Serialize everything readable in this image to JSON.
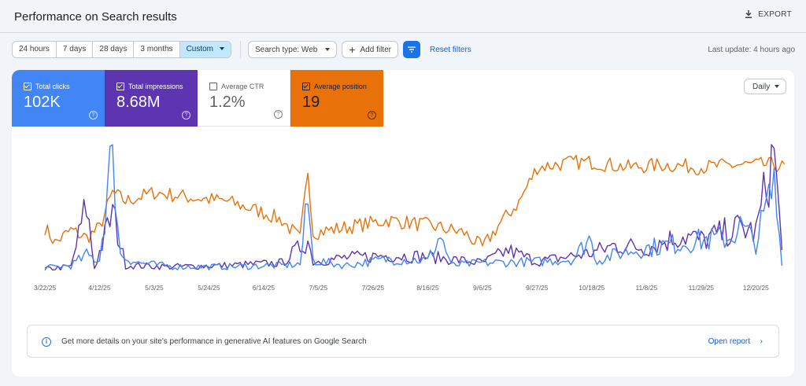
{
  "header": {
    "title": "Performance on Search results",
    "export_label": "EXPORT"
  },
  "filters": {
    "date_ranges": [
      "24 hours",
      "7 days",
      "28 days",
      "3 months",
      "Custom"
    ],
    "selected_date_range": "Custom",
    "search_type": "Search type: Web",
    "add_filter": "Add filter",
    "reset_filters": "Reset filters",
    "last_update": "Last update: 4 hours ago"
  },
  "metrics": [
    {
      "label": "Total clicks",
      "value": "102K",
      "checked": true,
      "color": "#4285f4"
    },
    {
      "label": "Total impressions",
      "value": "8.68M",
      "checked": true,
      "color": "#5e35b1"
    },
    {
      "label": "Average CTR",
      "value": "1.2%",
      "checked": false,
      "color": "#00897b"
    },
    {
      "label": "Average position",
      "value": "19",
      "checked": true,
      "color": "#e8710a"
    }
  ],
  "granularity": "Daily",
  "chart_data": {
    "type": "line",
    "x_tick_labels": [
      "3/22/25",
      "4/12/25",
      "5/3/25",
      "5/24/25",
      "6/14/25",
      "7/5/25",
      "7/26/25",
      "8/16/25",
      "9/6/25",
      "9/27/25",
      "10/18/25",
      "11/8/25",
      "11/29/25",
      "12/20/25"
    ],
    "x_range": [
      "3/22/25",
      "1/1/26"
    ],
    "grid": false,
    "axes_values_shown": false,
    "series": [
      {
        "name": "Total clicks",
        "color": "#4285f4",
        "scale": "relative 0-1",
        "points": [
          [
            "3/22/25",
            0.02
          ],
          [
            "4/1/25",
            0.04
          ],
          [
            "4/7/25",
            0.12
          ],
          [
            "4/12/25",
            0.08
          ],
          [
            "4/17/25",
            1.0
          ],
          [
            "4/20/25",
            0.12
          ],
          [
            "4/27/25",
            0.06
          ],
          [
            "5/10/25",
            0.03
          ],
          [
            "5/31/25",
            0.03
          ],
          [
            "6/21/25",
            0.04
          ],
          [
            "6/28/25",
            0.05
          ],
          [
            "7/1/25",
            0.55
          ],
          [
            "7/3/25",
            0.08
          ],
          [
            "7/15/25",
            0.04
          ],
          [
            "8/1/25",
            0.09
          ],
          [
            "8/16/25",
            0.08
          ],
          [
            "8/21/25",
            0.28
          ],
          [
            "8/25/25",
            0.04
          ],
          [
            "9/6/25",
            0.06
          ],
          [
            "9/27/25",
            0.07
          ],
          [
            "10/11/25",
            0.09
          ],
          [
            "10/17/25",
            0.26
          ],
          [
            "10/20/25",
            0.08
          ],
          [
            "10/31/25",
            0.15
          ],
          [
            "11/15/25",
            0.2
          ],
          [
            "11/29/25",
            0.24
          ],
          [
            "12/10/25",
            0.26
          ],
          [
            "12/14/25",
            0.35
          ],
          [
            "12/20/25",
            0.22
          ],
          [
            "12/27/25",
            0.68
          ],
          [
            "12/30/25",
            0.08
          ]
        ]
      },
      {
        "name": "Total impressions",
        "color": "#5e35b1",
        "scale": "relative 0-1",
        "points": [
          [
            "3/22/25",
            0.01
          ],
          [
            "4/1/25",
            0.03
          ],
          [
            "4/7/25",
            0.52
          ],
          [
            "4/10/25",
            0.02
          ],
          [
            "4/17/25",
            0.46
          ],
          [
            "4/22/25",
            0.04
          ],
          [
            "5/10/25",
            0.03
          ],
          [
            "5/31/25",
            0.04
          ],
          [
            "6/21/25",
            0.06
          ],
          [
            "7/1/25",
            0.24
          ],
          [
            "7/3/25",
            0.07
          ],
          [
            "7/15/25",
            0.1
          ],
          [
            "8/1/25",
            0.12
          ],
          [
            "8/16/25",
            0.11
          ],
          [
            "9/6/25",
            0.06
          ],
          [
            "9/16/25",
            0.16
          ],
          [
            "9/27/25",
            0.07
          ],
          [
            "10/18/25",
            0.14
          ],
          [
            "10/27/25",
            0.2
          ],
          [
            "11/8/25",
            0.18
          ],
          [
            "11/22/25",
            0.28
          ],
          [
            "11/29/25",
            0.24
          ],
          [
            "12/14/25",
            0.34
          ],
          [
            "12/20/25",
            0.3
          ],
          [
            "12/27/25",
            0.96
          ],
          [
            "12/30/25",
            0.14
          ]
        ]
      },
      {
        "name": "Average position",
        "color": "#e8710a",
        "scale": "relative 0-1",
        "points": [
          [
            "3/22/25",
            0.34
          ],
          [
            "3/26/25",
            0.22
          ],
          [
            "4/1/25",
            0.32
          ],
          [
            "4/7/25",
            0.26
          ],
          [
            "4/12/25",
            0.34
          ],
          [
            "4/17/25",
            0.62
          ],
          [
            "4/22/25",
            0.55
          ],
          [
            "5/3/25",
            0.62
          ],
          [
            "5/17/25",
            0.58
          ],
          [
            "5/31/25",
            0.55
          ],
          [
            "6/14/25",
            0.46
          ],
          [
            "6/21/25",
            0.4
          ],
          [
            "6/28/25",
            0.25
          ],
          [
            "7/1/25",
            0.8
          ],
          [
            "7/3/25",
            0.3
          ],
          [
            "7/15/25",
            0.34
          ],
          [
            "8/1/25",
            0.4
          ],
          [
            "8/16/25",
            0.36
          ],
          [
            "8/30/25",
            0.3
          ],
          [
            "9/6/25",
            0.18
          ],
          [
            "9/13/25",
            0.38
          ],
          [
            "9/20/25",
            0.54
          ],
          [
            "9/27/25",
            0.82
          ],
          [
            "10/11/25",
            0.86
          ],
          [
            "10/18/25",
            0.86
          ],
          [
            "11/1/25",
            0.82
          ],
          [
            "11/15/25",
            0.84
          ],
          [
            "11/29/25",
            0.82
          ],
          [
            "12/13/25",
            0.84
          ],
          [
            "12/27/25",
            0.84
          ],
          [
            "12/31/25",
            0.82
          ]
        ]
      }
    ]
  },
  "ai_banner": {
    "text": "Get more details on your site's performance in generative AI features on Google Search",
    "link": "Open report"
  }
}
